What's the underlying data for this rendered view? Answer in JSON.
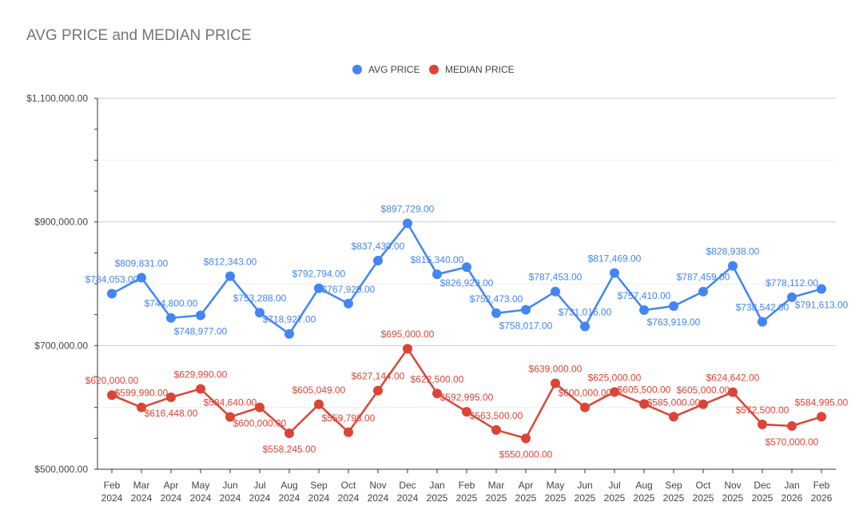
{
  "chart_data": {
    "type": "line",
    "title": "AVG PRICE and MEDIAN PRICE",
    "legend_position": "top",
    "grid": true,
    "categories": [
      "Feb 2024",
      "Mar 2024",
      "Apr 2024",
      "May 2024",
      "Jun 2024",
      "Jul 2024",
      "Aug 2024",
      "Sep 2024",
      "Oct 2024",
      "Nov 2024",
      "Dec 2024",
      "Jan 2025",
      "Feb 2025",
      "Mar 2025",
      "Apr 2025",
      "May 2025",
      "Jun 2025",
      "Jul 2025",
      "Aug 2025",
      "Sep 2025",
      "Oct 2025",
      "Nov 2025",
      "Dec 2025",
      "Jan 2026",
      "Feb 2026"
    ],
    "ylim": [
      500000,
      1100000
    ],
    "yticks": [
      "$500,000.00",
      "$700,000.00",
      "$900,000.00",
      "$1,100,000.00"
    ],
    "ytick_values": [
      500000,
      700000,
      900000,
      1100000
    ],
    "series": [
      {
        "name": "AVG PRICE",
        "color": "#4285f4",
        "values": [
          784053,
          809831,
          744800,
          748977,
          812343,
          753288,
          718927,
          792794,
          767929,
          837430,
          897729,
          815340,
          826929,
          752473,
          758017,
          787453,
          731016,
          817469,
          757410,
          763919,
          787459,
          828938,
          738542,
          778112,
          791613
        ]
      },
      {
        "name": "MEDIAN PRICE",
        "color": "#db4437",
        "values": [
          620000,
          599990,
          616448,
          629990,
          584640,
          600000,
          558245,
          605049,
          559798,
          627144,
          695000,
          622500,
          592995,
          563500,
          550000,
          639000,
          600000,
          625000,
          605500,
          585000,
          605000,
          624642,
          572500,
          570000,
          584995
        ]
      }
    ]
  }
}
